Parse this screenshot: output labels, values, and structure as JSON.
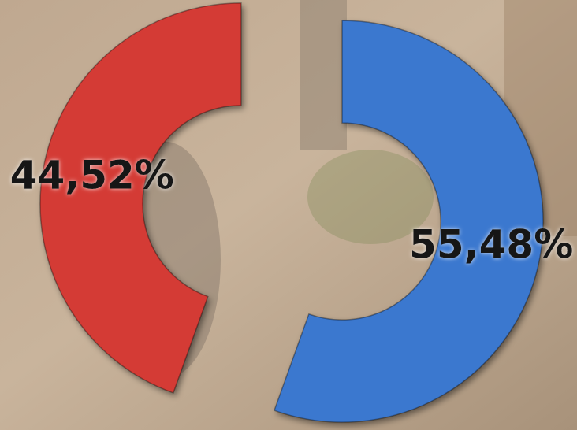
{
  "chart_data": {
    "type": "donut",
    "values": [
      55.48,
      44.52
    ],
    "value_labels": [
      "55,48%",
      "44,52%"
    ],
    "colors": [
      "#3b78cf",
      "#d43b36"
    ]
  }
}
